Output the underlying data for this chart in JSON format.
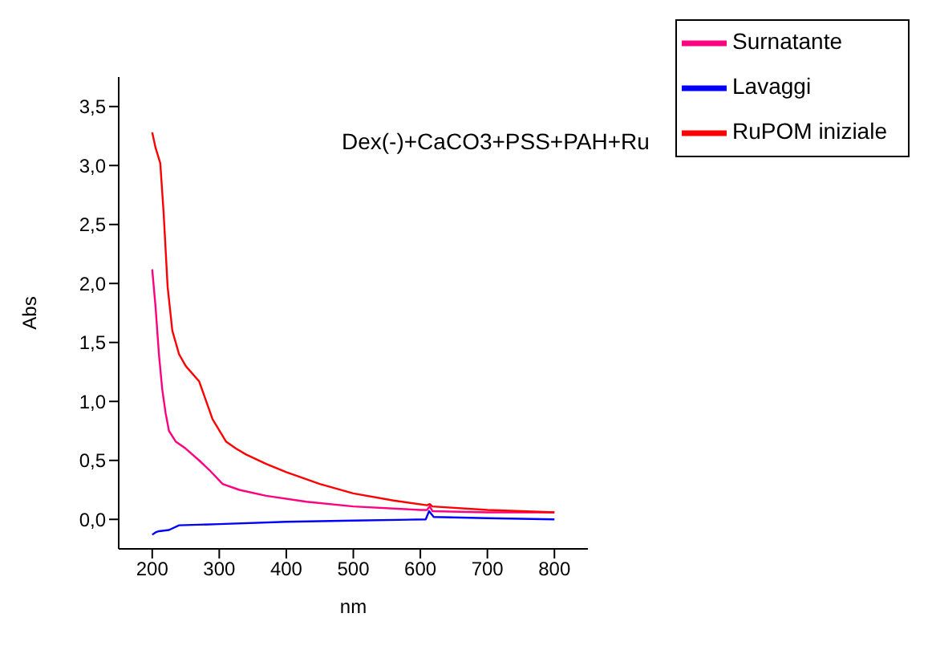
{
  "chart_data": {
    "type": "line",
    "xlabel": "nm",
    "ylabel": "Abs",
    "annotations": [
      "Dex(-)+CaCO3+PSS+PAH+Ru"
    ],
    "xlim": [
      150,
      850
    ],
    "xticks": [
      200,
      300,
      400,
      500,
      600,
      700,
      800
    ],
    "ylim": [
      -0.25,
      3.75
    ],
    "yticks": [
      {
        "value": 0,
        "label": "0,0"
      },
      {
        "value": 0.5,
        "label": "0,5"
      },
      {
        "value": 1,
        "label": "1,0"
      },
      {
        "value": 1.5,
        "label": "1,5"
      },
      {
        "value": 2,
        "label": "2,0"
      },
      {
        "value": 2.5,
        "label": "2,5"
      },
      {
        "value": 3,
        "label": "3,0"
      },
      {
        "value": 3.5,
        "label": "3,5"
      }
    ],
    "legend": "top right",
    "marker": "none",
    "line_style": "solid",
    "series": [
      {
        "name": "Surnatante",
        "color": "#ff0080",
        "x": [
          200,
          205,
          210,
          215,
          220,
          225,
          235,
          250,
          270,
          285,
          305,
          330,
          370,
          430,
          500,
          600,
          610,
          614,
          618,
          700,
          800
        ],
        "values": [
          2.12,
          1.8,
          1.4,
          1.1,
          0.9,
          0.75,
          0.66,
          0.6,
          0.5,
          0.42,
          0.3,
          0.25,
          0.2,
          0.15,
          0.11,
          0.08,
          0.08,
          0.11,
          0.07,
          0.06,
          0.06
        ]
      },
      {
        "name": "Lavaggi",
        "color": "#0000ff",
        "x": [
          200,
          205,
          210,
          225,
          240,
          300,
          400,
          500,
          608,
          613,
          620,
          700,
          800
        ],
        "values": [
          -0.13,
          -0.11,
          -0.1,
          -0.09,
          -0.05,
          -0.04,
          -0.02,
          -0.01,
          0,
          0.07,
          0.02,
          0.01,
          0
        ]
      },
      {
        "name": "RuPOM iniziale",
        "color": "#ff0000",
        "x": [
          200,
          205,
          212,
          217,
          223,
          230,
          240,
          250,
          270,
          290,
          310,
          325,
          340,
          370,
          400,
          450,
          500,
          560,
          610,
          614,
          618,
          700,
          800
        ],
        "values": [
          3.28,
          3.15,
          3.02,
          2.6,
          1.97,
          1.6,
          1.4,
          1.3,
          1.17,
          0.85,
          0.66,
          0.6,
          0.55,
          0.47,
          0.4,
          0.3,
          0.22,
          0.16,
          0.12,
          0.13,
          0.11,
          0.08,
          0.06
        ]
      }
    ]
  }
}
